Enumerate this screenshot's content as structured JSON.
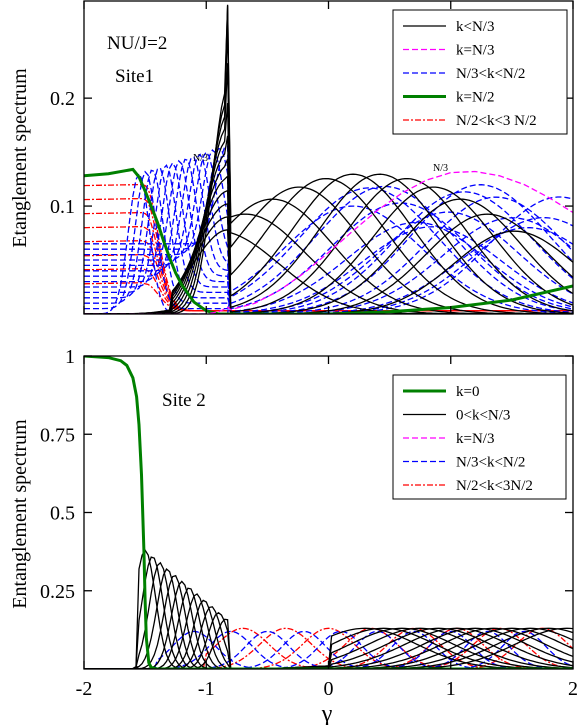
{
  "chart_data": [
    {
      "type": "line",
      "panel": "top",
      "ylabel": "Etanglement spectrum",
      "xlabel": "",
      "xlim": [
        -2,
        2
      ],
      "ylim": [
        0,
        0.29
      ],
      "xticks": [
        -2,
        -1,
        0,
        1,
        2
      ],
      "yticks": [
        0.1,
        0.2
      ],
      "ytick_labels": [
        "0.1",
        "0.2"
      ],
      "annotations": [
        "NU/J=2",
        "Site1",
        "N/3",
        "N/3"
      ],
      "legend": {
        "position": "top-right",
        "entries": [
          {
            "label": "k<N/3",
            "color": "#000000",
            "style": "solid"
          },
          {
            "label": "k=N/3",
            "color": "#ff00ff",
            "style": "dashed"
          },
          {
            "label": "N/3<k<N/2",
            "color": "#0000ff",
            "style": "dashed"
          },
          {
            "label": "k=N/2",
            "color": "#008000",
            "style": "solid-thick"
          },
          {
            "label": "N/2<k<3 N/2",
            "color": "#ff0000",
            "style": "dashdot"
          }
        ]
      },
      "series": [
        {
          "name": "k=N/2",
          "color": "#008000",
          "x": [
            -2,
            -1.8,
            -1.6,
            -1.55,
            -1.5,
            -1.45,
            -1.4,
            -1.35,
            -1.3,
            -1.25,
            -1.2,
            -1.1,
            -1.0,
            -0.9,
            -0.5,
            0,
            0.5,
            1.0,
            1.5,
            2.0
          ],
          "y": [
            0.128,
            0.13,
            0.134,
            0.127,
            0.114,
            0.1,
            0.085,
            0.068,
            0.052,
            0.038,
            0.027,
            0.011,
            0.003,
            0.0,
            0.0,
            0.0,
            0.002,
            0.006,
            0.013,
            0.026
          ]
        },
        {
          "name": "k=N/3",
          "color": "#ff00ff",
          "x": [
            -2,
            -1.6,
            -1.2,
            -1.0,
            -0.9,
            -0.82,
            -0.8,
            -0.6,
            -0.4,
            -0.2,
            0,
            0.2,
            0.4,
            0.6,
            0.8,
            1.0,
            1.2,
            1.4,
            1.6,
            1.8,
            2.0
          ],
          "y": [
            0.0,
            0.0,
            0.0,
            0.0,
            0.002,
            0.006,
            0.004,
            0.01,
            0.022,
            0.038,
            0.057,
            0.077,
            0.096,
            0.112,
            0.124,
            0.131,
            0.132,
            0.128,
            0.12,
            0.108,
            0.094
          ]
        }
      ]
    },
    {
      "type": "line",
      "panel": "bottom",
      "ylabel": "Entanglement spectrum",
      "xlabel": "γ",
      "xlim": [
        -2,
        2
      ],
      "ylim": [
        0,
        1
      ],
      "xticks": [
        -2,
        -1,
        0,
        1,
        2
      ],
      "xtick_labels": [
        "-2",
        "-1",
        "0",
        "1",
        "2"
      ],
      "yticks": [
        0.25,
        0.5,
        0.75,
        1
      ],
      "ytick_labels": [
        "0.25",
        "0.5",
        "0.75",
        "1"
      ],
      "annotations": [
        "Site 2"
      ],
      "legend": {
        "position": "top-right",
        "entries": [
          {
            "label": "k=0",
            "color": "#008000",
            "style": "solid-thick"
          },
          {
            "label": "0<k<N/3",
            "color": "#000000",
            "style": "solid"
          },
          {
            "label": "k=N/3",
            "color": "#ff00ff",
            "style": "dashed"
          },
          {
            "label": "N/3<k<N/2",
            "color": "#0000ff",
            "style": "dashed"
          },
          {
            "label": "N/2<k<3N/2",
            "color": "#ff0000",
            "style": "dashdot"
          }
        ]
      },
      "series": [
        {
          "name": "k=0",
          "color": "#008000",
          "x": [
            -2,
            -1.8,
            -1.7,
            -1.65,
            -1.6,
            -1.57,
            -1.55,
            -1.53,
            -1.51,
            -1.5,
            -1.49,
            -1.47,
            -1.45,
            -1.4,
            -1.0,
            0,
            1,
            2
          ],
          "y": [
            1.0,
            0.995,
            0.985,
            0.97,
            0.93,
            0.87,
            0.78,
            0.62,
            0.38,
            0.22,
            0.1,
            0.02,
            0.005,
            0.0,
            0.0,
            0.0,
            0.0,
            0.0
          ]
        }
      ]
    }
  ]
}
